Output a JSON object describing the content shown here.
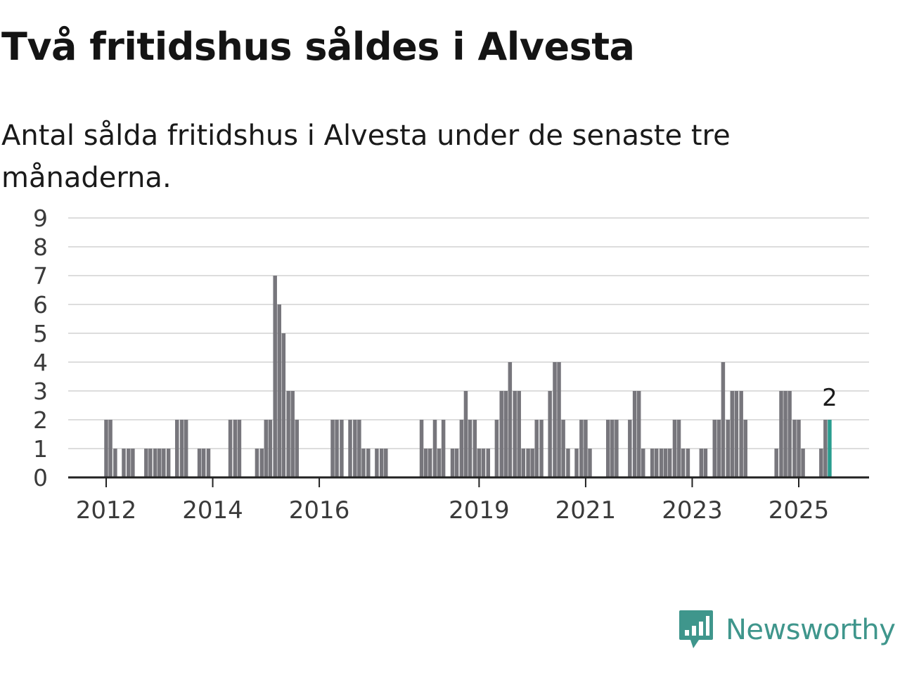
{
  "header": {
    "title": "Två fritidshus såldes i Alvesta",
    "subtitle": "Antal sålda fritidshus i Alvesta under de senaste tre månaderna."
  },
  "brand": {
    "name": "Newsworthy",
    "icon": "chat-bars-icon",
    "color": "#3f968c"
  },
  "colors": {
    "bar": "#77767c",
    "highlight": "#2a9d8f",
    "grid": "#dddddd",
    "axis": "#222222"
  },
  "chart_data": {
    "type": "bar",
    "x_unit": "quarter",
    "y_ticks": [
      "0",
      "1",
      "2",
      "3",
      "4",
      "5",
      "6",
      "7",
      "8",
      "9"
    ],
    "ylim": [
      0,
      9
    ],
    "x_ticks": [
      "2012",
      "2014",
      "2016",
      "2019",
      "2021",
      "2023",
      "2025"
    ],
    "x_tick_positions": [
      2012,
      2014,
      2016,
      2019,
      2021,
      2023,
      2025
    ],
    "xlim": [
      2011.4,
      2026.4
    ],
    "grid": true,
    "legend": "none",
    "bars": [
      {
        "x": 2012.0,
        "y": 2
      },
      {
        "x": 2012.08,
        "y": 2
      },
      {
        "x": 2012.17,
        "y": 1
      },
      {
        "x": 2012.33,
        "y": 1
      },
      {
        "x": 2012.42,
        "y": 1
      },
      {
        "x": 2012.5,
        "y": 1
      },
      {
        "x": 2012.75,
        "y": 1
      },
      {
        "x": 2012.83,
        "y": 1
      },
      {
        "x": 2012.92,
        "y": 1
      },
      {
        "x": 2013.0,
        "y": 1
      },
      {
        "x": 2013.08,
        "y": 1
      },
      {
        "x": 2013.17,
        "y": 1
      },
      {
        "x": 2013.33,
        "y": 2
      },
      {
        "x": 2013.42,
        "y": 2
      },
      {
        "x": 2013.5,
        "y": 2
      },
      {
        "x": 2013.75,
        "y": 1
      },
      {
        "x": 2013.83,
        "y": 1
      },
      {
        "x": 2013.92,
        "y": 1
      },
      {
        "x": 2014.33,
        "y": 2
      },
      {
        "x": 2014.42,
        "y": 2
      },
      {
        "x": 2014.5,
        "y": 2
      },
      {
        "x": 2014.83,
        "y": 1
      },
      {
        "x": 2014.92,
        "y": 1
      },
      {
        "x": 2015.0,
        "y": 2
      },
      {
        "x": 2015.08,
        "y": 2
      },
      {
        "x": 2015.17,
        "y": 7
      },
      {
        "x": 2015.25,
        "y": 6
      },
      {
        "x": 2015.33,
        "y": 5
      },
      {
        "x": 2015.42,
        "y": 3
      },
      {
        "x": 2015.5,
        "y": 3
      },
      {
        "x": 2015.58,
        "y": 2
      },
      {
        "x": 2016.25,
        "y": 2
      },
      {
        "x": 2016.33,
        "y": 2
      },
      {
        "x": 2016.42,
        "y": 2
      },
      {
        "x": 2016.58,
        "y": 2
      },
      {
        "x": 2016.67,
        "y": 2
      },
      {
        "x": 2016.75,
        "y": 2
      },
      {
        "x": 2016.83,
        "y": 1
      },
      {
        "x": 2016.92,
        "y": 1
      },
      {
        "x": 2017.08,
        "y": 1
      },
      {
        "x": 2017.17,
        "y": 1
      },
      {
        "x": 2017.25,
        "y": 1
      },
      {
        "x": 2017.92,
        "y": 2
      },
      {
        "x": 2018.0,
        "y": 1
      },
      {
        "x": 2018.08,
        "y": 1
      },
      {
        "x": 2018.17,
        "y": 2
      },
      {
        "x": 2018.25,
        "y": 1
      },
      {
        "x": 2018.33,
        "y": 2
      },
      {
        "x": 2018.5,
        "y": 1
      },
      {
        "x": 2018.58,
        "y": 1
      },
      {
        "x": 2018.67,
        "y": 2
      },
      {
        "x": 2018.75,
        "y": 3
      },
      {
        "x": 2018.83,
        "y": 2
      },
      {
        "x": 2018.92,
        "y": 2
      },
      {
        "x": 2019.0,
        "y": 1
      },
      {
        "x": 2019.08,
        "y": 1
      },
      {
        "x": 2019.17,
        "y": 1
      },
      {
        "x": 2019.33,
        "y": 2
      },
      {
        "x": 2019.42,
        "y": 3
      },
      {
        "x": 2019.5,
        "y": 3
      },
      {
        "x": 2019.58,
        "y": 4
      },
      {
        "x": 2019.67,
        "y": 3
      },
      {
        "x": 2019.75,
        "y": 3
      },
      {
        "x": 2019.83,
        "y": 1
      },
      {
        "x": 2019.92,
        "y": 1
      },
      {
        "x": 2020.0,
        "y": 1
      },
      {
        "x": 2020.08,
        "y": 2
      },
      {
        "x": 2020.17,
        "y": 2
      },
      {
        "x": 2020.33,
        "y": 3
      },
      {
        "x": 2020.42,
        "y": 4
      },
      {
        "x": 2020.5,
        "y": 4
      },
      {
        "x": 2020.58,
        "y": 2
      },
      {
        "x": 2020.67,
        "y": 1
      },
      {
        "x": 2020.83,
        "y": 1
      },
      {
        "x": 2020.92,
        "y": 2
      },
      {
        "x": 2021.0,
        "y": 2
      },
      {
        "x": 2021.08,
        "y": 1
      },
      {
        "x": 2021.42,
        "y": 2
      },
      {
        "x": 2021.5,
        "y": 2
      },
      {
        "x": 2021.58,
        "y": 2
      },
      {
        "x": 2021.83,
        "y": 2
      },
      {
        "x": 2021.92,
        "y": 3
      },
      {
        "x": 2022.0,
        "y": 3
      },
      {
        "x": 2022.08,
        "y": 1
      },
      {
        "x": 2022.25,
        "y": 1
      },
      {
        "x": 2022.33,
        "y": 1
      },
      {
        "x": 2022.42,
        "y": 1
      },
      {
        "x": 2022.5,
        "y": 1
      },
      {
        "x": 2022.58,
        "y": 1
      },
      {
        "x": 2022.67,
        "y": 2
      },
      {
        "x": 2022.75,
        "y": 2
      },
      {
        "x": 2022.83,
        "y": 1
      },
      {
        "x": 2022.92,
        "y": 1
      },
      {
        "x": 2023.17,
        "y": 1
      },
      {
        "x": 2023.25,
        "y": 1
      },
      {
        "x": 2023.42,
        "y": 2
      },
      {
        "x": 2023.5,
        "y": 2
      },
      {
        "x": 2023.58,
        "y": 4
      },
      {
        "x": 2023.67,
        "y": 2
      },
      {
        "x": 2023.75,
        "y": 3
      },
      {
        "x": 2023.83,
        "y": 3
      },
      {
        "x": 2023.92,
        "y": 3
      },
      {
        "x": 2024.0,
        "y": 2
      },
      {
        "x": 2024.58,
        "y": 1
      },
      {
        "x": 2024.67,
        "y": 3
      },
      {
        "x": 2024.75,
        "y": 3
      },
      {
        "x": 2024.83,
        "y": 3
      },
      {
        "x": 2024.92,
        "y": 2
      },
      {
        "x": 2025.0,
        "y": 2
      },
      {
        "x": 2025.08,
        "y": 1
      },
      {
        "x": 2025.42,
        "y": 1
      },
      {
        "x": 2025.5,
        "y": 2
      },
      {
        "x": 2025.58,
        "y": 2,
        "highlight": true
      }
    ],
    "annotation": {
      "text": "2",
      "x": 2025.58,
      "y": 2
    }
  }
}
